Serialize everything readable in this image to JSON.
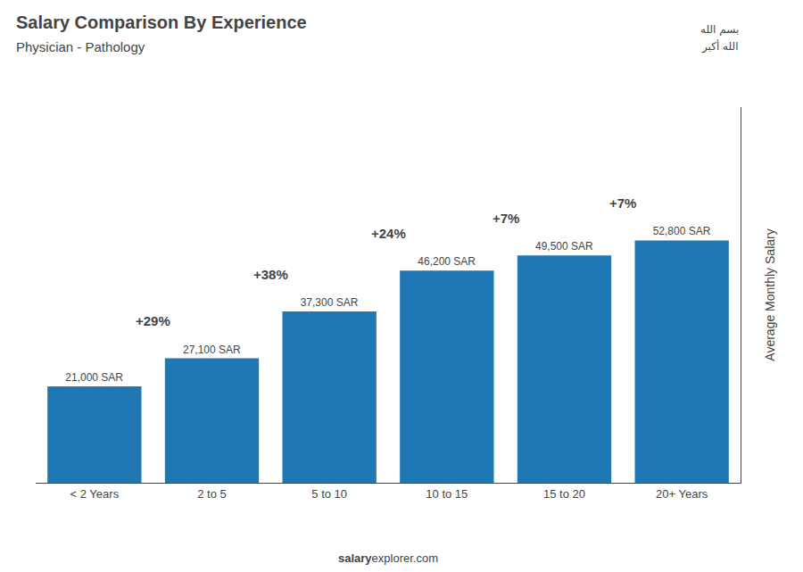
{
  "chart_data": {
    "type": "bar",
    "title": "Salary Comparison By Experience",
    "subtitle": "Physician - Pathology",
    "y_label": "Average Monthly Salary",
    "categories": [
      "< 2 Years",
      "2 to 5",
      "5 to 10",
      "10 to 15",
      "15 to 20",
      "20+ Years"
    ],
    "values": [
      21000,
      27100,
      37300,
      46200,
      49500,
      52800
    ],
    "value_labels": [
      "21,000 SAR",
      "27,100 SAR",
      "37,300 SAR",
      "46,200 SAR",
      "49,500 SAR",
      "52,800 SAR"
    ],
    "data_labels": true,
    "annotations": [
      {
        "category": "2 to 5",
        "text": "+29%"
      },
      {
        "category": "5 to 10",
        "text": "+38%"
      },
      {
        "category": "10 to 15",
        "text": "+24%"
      },
      {
        "category": "15 to 20",
        "text": "+7%"
      },
      {
        "category": "20+ Years",
        "text": "+7%"
      }
    ],
    "footer": [
      "salary",
      "explorer.com"
    ],
    "flag_texts": [
      "بسم الله",
      "الله أكبر"
    ],
    "ylim": [
      0,
      81840
    ],
    "tick_labels": "x",
    "grid": false
  }
}
